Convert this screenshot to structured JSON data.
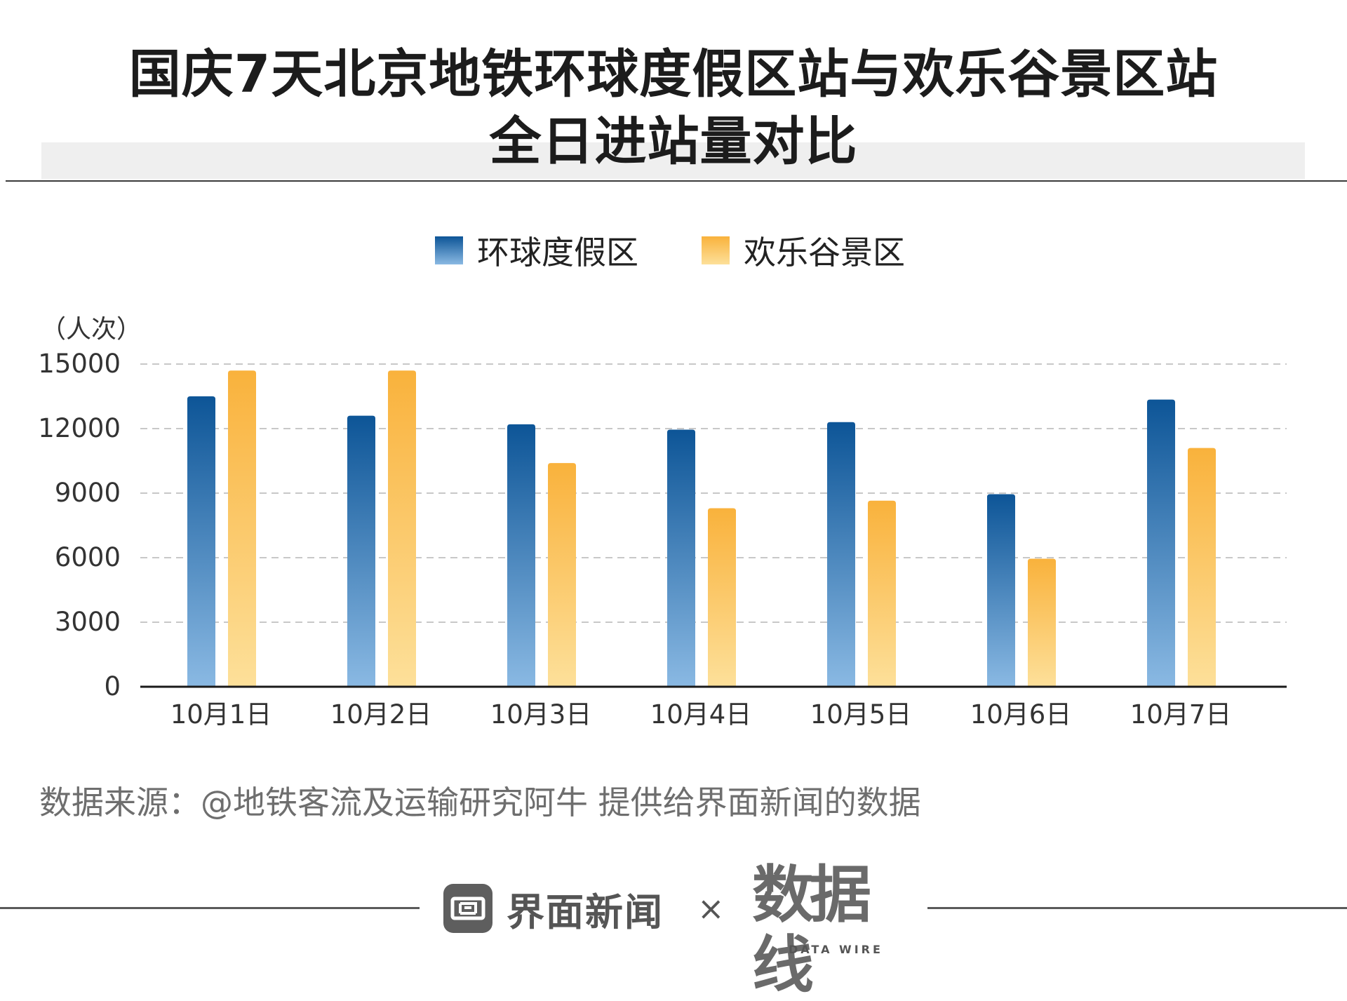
{
  "title": {
    "line1": "国庆7天北京地铁环球度假区站与欢乐谷景区站",
    "line2": "全日进站量对比"
  },
  "legend": [
    {
      "label": "环球度假区",
      "color_top": "#0d5597",
      "color_bottom": "#8ab9e3"
    },
    {
      "label": "欢乐谷景区",
      "color_top": "#f9b23c",
      "color_bottom": "#fde09a"
    }
  ],
  "unit": "（人次）",
  "chart_data": {
    "type": "bar",
    "categories": [
      "10月1日",
      "10月2日",
      "10月3日",
      "10月4日",
      "10月5日",
      "10月6日",
      "10月7日"
    ],
    "series": [
      {
        "name": "环球度假区",
        "values": [
          13500,
          12600,
          12200,
          11950,
          12300,
          8950,
          13350
        ]
      },
      {
        "name": "欢乐谷景区",
        "values": [
          14700,
          14700,
          10400,
          8300,
          8650,
          5950,
          11100
        ]
      }
    ],
    "yticks": [
      "0",
      "3000",
      "6000",
      "9000",
      "12000",
      "15000"
    ],
    "ylim": [
      0,
      15000
    ],
    "grid": true,
    "legend_position": "top-center"
  },
  "source": "数据来源：@地铁客流及运输研究阿牛 提供给界面新闻的数据",
  "footer": {
    "brand": "界面新闻",
    "cross": "×",
    "partner": "数据线",
    "partner_sub": "DATA WIRE"
  }
}
